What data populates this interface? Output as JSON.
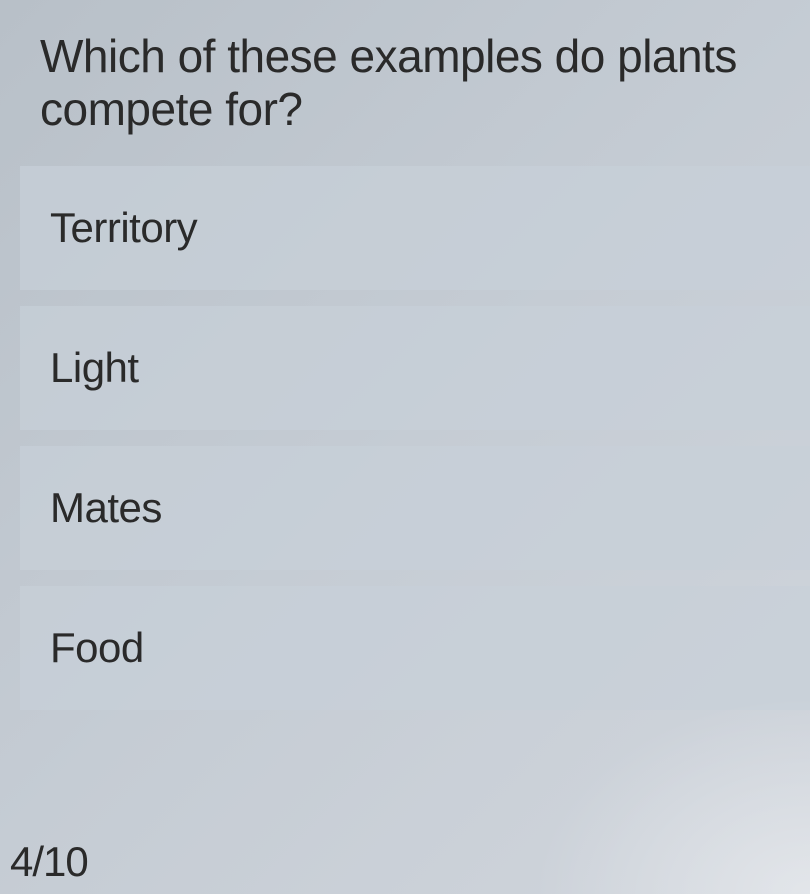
{
  "question": {
    "text": "Which of these examples do plants compete for?",
    "fontsize": 46,
    "color": "#2a2a2a"
  },
  "options": [
    {
      "label": "Territory"
    },
    {
      "label": "Light"
    },
    {
      "label": "Mates"
    },
    {
      "label": "Food"
    }
  ],
  "progress": {
    "text": "4/10"
  },
  "styling": {
    "background_gradient_start": "#b8c0c8",
    "background_gradient_end": "#d0d5dc",
    "option_background": "rgba(200, 208, 216, 0.7)",
    "option_fontsize": 42,
    "text_color": "#2a2a2a"
  }
}
